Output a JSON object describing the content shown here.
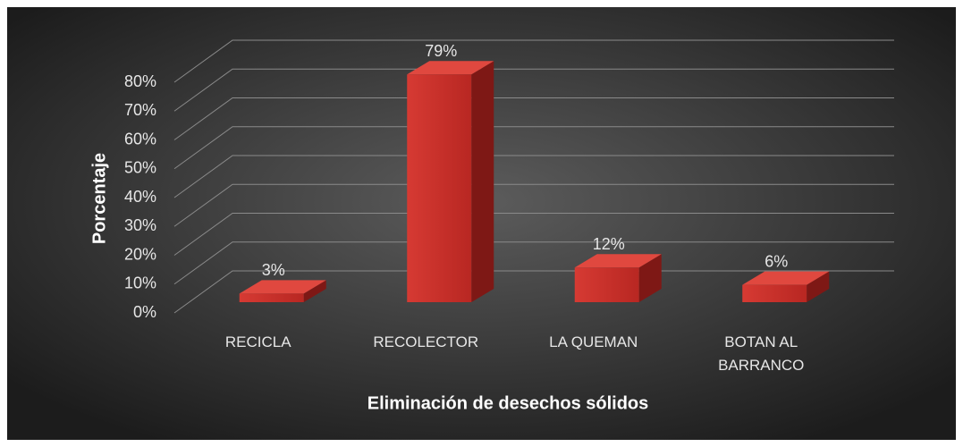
{
  "chart_data": {
    "type": "bar3d",
    "x_label": "Eliminación de desechos sólidos",
    "y_label": "Porcentaje",
    "categories": [
      "RECICLA",
      "RECOLECTOR",
      "LA QUEMAN",
      "BOTAN AL BARRANCO"
    ],
    "values": [
      3,
      79,
      12,
      6
    ],
    "value_labels": [
      "3%",
      "79%",
      "12%",
      "6%"
    ],
    "color": "#c8322d",
    "ylim": [
      0,
      80
    ],
    "yticks": [
      {
        "value": 0,
        "label": "0%"
      },
      {
        "value": 10,
        "label": "10%"
      },
      {
        "value": 20,
        "label": "20%"
      },
      {
        "value": 30,
        "label": "30%"
      },
      {
        "value": 40,
        "label": "40%"
      },
      {
        "value": 50,
        "label": "50%"
      },
      {
        "value": 60,
        "label": "60%"
      },
      {
        "value": 70,
        "label": "70%"
      },
      {
        "value": 80,
        "label": "80%"
      }
    ],
    "grid": true
  }
}
